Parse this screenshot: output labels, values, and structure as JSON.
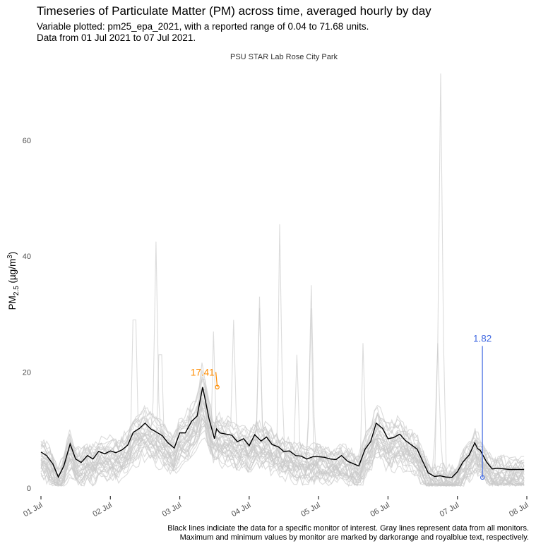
{
  "chart_data": {
    "type": "line",
    "title": "Timeseries of Particulate Matter (PM) across time, averaged hourly by day",
    "subtitle_line1": "Variable plotted: pm25_epa_2021, with a reported range of 0.04 to 71.68 units.",
    "subtitle_line2": "Data from 01 Jul 2021 to 07 Jul 2021.",
    "facet_label": "PSU STAR Lab Rose City Park",
    "ylabel_main": "PM",
    "ylabel_sub": "2.5",
    "ylabel_unit_open": " (µg/m",
    "ylabel_unit_sup": "3",
    "ylabel_unit_close": ")",
    "xlabel": "",
    "ylim": [
      -1,
      73
    ],
    "xlim": [
      0,
      7
    ],
    "y_ticks": [
      0,
      20,
      40,
      60
    ],
    "y_tick_labels": [
      "0",
      "20",
      "40",
      "60"
    ],
    "x_ticks": [
      0,
      1,
      2,
      3,
      4,
      5,
      6,
      7
    ],
    "x_tick_labels": [
      "01 Jul",
      "02 Jul",
      "03 Jul",
      "04 Jul",
      "05 Jul",
      "06 Jul",
      "07 Jul",
      "08 Jul"
    ],
    "grid": false,
    "colors": {
      "highlight": "#000000",
      "others": "#c9c9c9",
      "max": "#FF8C00",
      "min": "#4169E1"
    },
    "series": [
      {
        "x": [
          0,
          0.08,
          0.17,
          0.25,
          0.33,
          0.42,
          0.5,
          0.58,
          0.67,
          0.75,
          0.83,
          0.92,
          1.0,
          1.08,
          1.17,
          1.25,
          1.33,
          1.42,
          1.5,
          1.58,
          1.67,
          1.75,
          1.83,
          1.92,
          2.0,
          2.08,
          2.17,
          2.25,
          2.33,
          2.42,
          2.5,
          2.53,
          2.58,
          2.67,
          2.75,
          2.83,
          2.92,
          3.0,
          3.08,
          3.17,
          3.25,
          3.33,
          3.42,
          3.5,
          3.58,
          3.67,
          3.75,
          3.83,
          3.92,
          4.0,
          4.08,
          4.17,
          4.25,
          4.33,
          4.42,
          4.5,
          4.58,
          4.67,
          4.75,
          4.83,
          4.92,
          5.0,
          5.08,
          5.17,
          5.25,
          5.33,
          5.42,
          5.5,
          5.58,
          5.67,
          5.75,
          5.83,
          5.92,
          6.0,
          6.08,
          6.17,
          6.25,
          6.29,
          6.33,
          6.42,
          6.5,
          6.58,
          6.67,
          6.75,
          6.83,
          6.92,
          6.96
        ],
        "y": [
          6.2,
          5.6,
          4.2,
          1.9,
          3.8,
          7.6,
          5.0,
          4.4,
          5.6,
          5.0,
          6.3,
          5.9,
          6.4,
          6.1,
          6.6,
          7.4,
          9.6,
          10.3,
          11.2,
          10.2,
          9.6,
          9.0,
          7.8,
          6.9,
          9.5,
          9.5,
          11.5,
          12.4,
          17.41,
          12.0,
          8.5,
          10.2,
          9.5,
          9.3,
          9.1,
          8.0,
          8.5,
          7.3,
          9.2,
          8.1,
          8.8,
          7.5,
          7.1,
          6.3,
          6.4,
          5.6,
          5.5,
          5.0,
          5.4,
          5.4,
          5.3,
          5.0,
          4.9,
          5.6,
          4.6,
          4.2,
          3.8,
          6.7,
          8.0,
          11.2,
          10.3,
          8.5,
          8.7,
          9.3,
          8.2,
          7.5,
          6.7,
          4.6,
          2.6,
          2.0,
          2.1,
          1.9,
          1.82,
          2.8,
          4.5,
          5.7,
          7.8,
          6.8,
          6.5,
          4.5,
          3.3,
          3.4,
          3.3,
          3.2,
          3.2,
          3.2,
          3.2
        ]
      }
    ],
    "background_series_count": 30,
    "max_label": "17.41",
    "max_point": {
      "x": 2.54,
      "y": 17.41
    },
    "min_label": "1.82",
    "min_point": {
      "x": 6.36,
      "y": 1.82
    },
    "caption_line1": "Black lines indiciate the data for a specific monitor of interest. Gray lines represent data from all monitors.",
    "caption_line2": "Maximum and minimum values by monitor are marked by darkorange and royalblue text, respectively."
  }
}
